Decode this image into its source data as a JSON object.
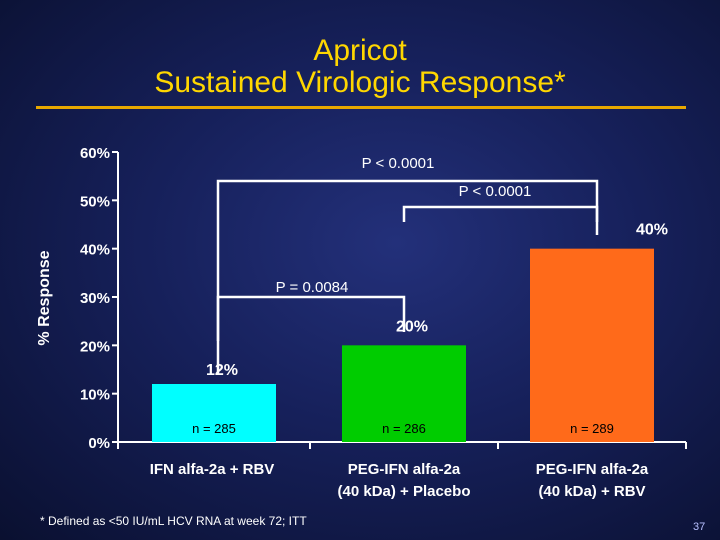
{
  "slide": {
    "title_line1": "Apricot",
    "title_line2": "Sustained Virologic Response*",
    "footnote": "* Defined as <50 IU/mL HCV RNA at week 72; ITT",
    "page_number": "37",
    "colors": {
      "title": "#FFD700",
      "rule": "#E8A800",
      "background": "#16205a"
    }
  },
  "chart_data": {
    "type": "bar",
    "ylabel": "% Response",
    "ylim": [
      0,
      60
    ],
    "yticks": [
      0,
      10,
      20,
      30,
      40,
      50,
      60
    ],
    "ytick_labels": [
      "0%",
      "10%",
      "20%",
      "30%",
      "40%",
      "50%",
      "60%"
    ],
    "grid": false,
    "categories": [
      [
        "IFN alfa-2a + RBV"
      ],
      [
        "PEG-IFN alfa-2a",
        "(40 kDa) + Placebo"
      ],
      [
        "PEG-IFN alfa-2a",
        "(40 kDa) + RBV"
      ]
    ],
    "values": [
      12,
      20,
      40
    ],
    "value_labels": [
      "12%",
      "20%",
      "40%"
    ],
    "n_labels": [
      "n = 285",
      "n = 286",
      "n = 289"
    ],
    "bar_colors": [
      "#00FFFF",
      "#00CC00",
      "#FF6A1A"
    ],
    "comparisons": [
      {
        "from": 0,
        "to": 1,
        "label": "P = 0.0084"
      },
      {
        "from": 0,
        "to": 2,
        "label": "P < 0.0001"
      },
      {
        "from": 1,
        "to": 2,
        "label": "P < 0.0001"
      }
    ]
  }
}
